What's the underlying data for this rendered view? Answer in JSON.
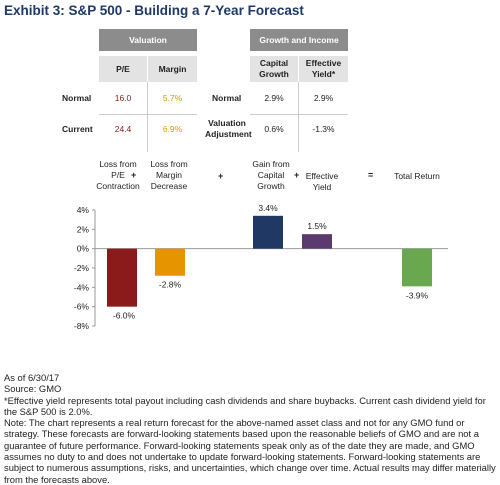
{
  "title": "Exhibit 3: S&P 500 - Building a 7-Year Forecast",
  "table": {
    "valuation_header": "Valuation",
    "growth_header": "Growth and Income",
    "col_pe": "P/E",
    "col_margin": "Margin",
    "col_capital_growth": "Capital Growth",
    "col_effective_yield": "Effective Yield*",
    "rows": [
      {
        "label": "Normal",
        "pe": "16.0",
        "margin": "5.7%",
        "label2": "Normal",
        "capital_growth": "2.9%",
        "effective_yield": "2.9%"
      },
      {
        "label": "Current",
        "pe": "24.4",
        "margin": "6.9%",
        "label2": "Valuation Adjustment",
        "capital_growth": "0.6%",
        "effective_yield": "-1.3%"
      }
    ]
  },
  "column_labels": {
    "pe_contraction": "Loss from P/E Contraction",
    "margin_decrease": "Loss from Margin Decrease",
    "gain_capital_growth": "Gain from Capital Growth",
    "effective_yield": "Effective Yield",
    "total_return": "Total Return",
    "plus1": "+",
    "plus2": "+",
    "plus3": "+",
    "equals": "="
  },
  "chart_data": {
    "type": "bar",
    "categories": [
      "Loss from P/E Contraction",
      "Loss from Margin Decrease",
      "Gain from Capital Growth",
      "Effective Yield",
      "Total Return"
    ],
    "values": [
      -6.0,
      -2.8,
      3.4,
      1.5,
      -3.9
    ],
    "data_labels": [
      "-6.0%",
      "-2.8%",
      "3.4%",
      "1.5%",
      "-3.9%"
    ],
    "colors": [
      "#8b1a1a",
      "#e69500",
      "#1f3864",
      "#5b3a6e",
      "#6aa84f"
    ],
    "ylim": [
      -8,
      4
    ],
    "yticks": [
      4,
      2,
      0,
      -2,
      -4,
      -6,
      -8
    ],
    "ytick_labels": [
      "4%",
      "2%",
      "0%",
      "-2%",
      "-4%",
      "-6%",
      "-8%"
    ]
  },
  "notes": {
    "as_of": "As of 6/30/17",
    "source": "Source: GMO",
    "footnote": "*Effective yield represents total payout including cash dividends and share buybacks.  Current cash dividend yield for the S&P 500 is 2.0%.",
    "disclaimer": "Note: The chart represents a real return forecast for the above-named asset class and not for any GMO fund or strategy. These forecasts are forward-looking statements based upon the reasonable beliefs of GMO and are not a guarantee of future performance. Forward-looking statements speak only as of the date they are made, and GMO assumes no duty to and does not undertake to update forward-looking statements. Forward-looking statements are subject to numerous assumptions, risks, and uncertainties, which change over time. Actual results may differ materially from the forecasts above."
  }
}
